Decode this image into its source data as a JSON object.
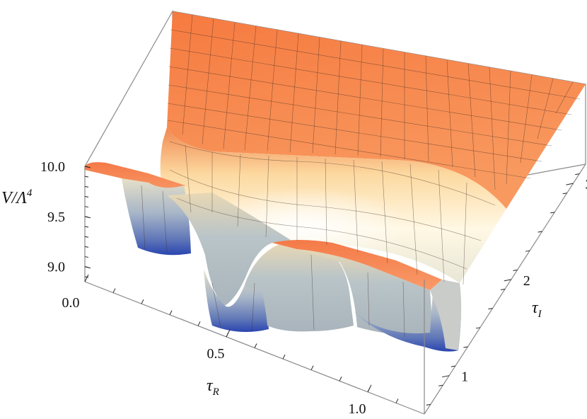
{
  "chart_data": {
    "type": "surface3d",
    "zlabel": "V/Λ",
    "zlabel_sup": "4",
    "xlabel": "τ",
    "xlabel_sub": "R",
    "ylabel": "τ",
    "ylabel_sub": "I",
    "x_ticks": [
      "0.0",
      "0.5",
      "1.0"
    ],
    "y_ticks": [
      "1",
      "2",
      "3"
    ],
    "z_ticks": [
      "9.0",
      "9.5",
      "10.0"
    ],
    "xlim": [
      0.0,
      1.2
    ],
    "ylim": [
      0.6,
      3.2
    ],
    "zlim": [
      8.85,
      10.0
    ],
    "plateau_value": 10.0,
    "minima": [
      {
        "tau_R": 0.0,
        "tau_I": 0.95,
        "V": 8.85
      },
      {
        "tau_R": 0.5,
        "tau_I": 0.87,
        "V": 8.85
      },
      {
        "tau_R": 1.0,
        "tau_I": 0.95,
        "V": 8.85
      }
    ],
    "grid": true,
    "colors": {
      "plateau": "#f78a50",
      "mid": "#fff4d8",
      "low": "#2a45b0",
      "box": "#8a8a8a",
      "mesh": "#3a2a20"
    }
  }
}
